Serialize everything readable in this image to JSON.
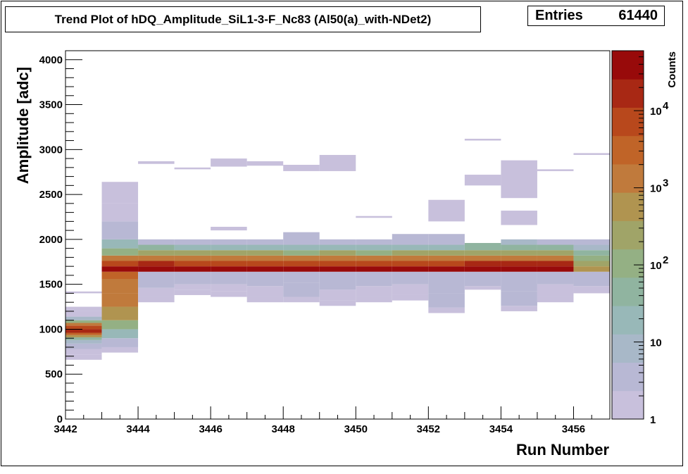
{
  "title": "Trend Plot of hDQ_Amplitude_SiL1-3-F_Nc83 (Al50(a)_with-NDet2)",
  "stats": {
    "label": "Entries",
    "value": "61440"
  },
  "chart_data": {
    "type": "heatmap",
    "xlabel": "Run Number",
    "ylabel": "Amplitude [adc]",
    "zlabel": "Counts",
    "xlim": [
      3442,
      3457
    ],
    "ylim": [
      0,
      4100
    ],
    "zlim": [
      1,
      60000
    ],
    "zscale": "log",
    "x_ticks": [
      3442,
      3444,
      3446,
      3448,
      3450,
      3452,
      3454,
      3456
    ],
    "y_ticks": [
      0,
      500,
      1000,
      1500,
      2000,
      2500,
      3000,
      3500,
      4000
    ],
    "z_ticks": [
      {
        "value": 1,
        "label": "1"
      },
      {
        "value": 10,
        "label": "10"
      },
      {
        "value": 100,
        "label": "10",
        "exp": "2"
      },
      {
        "value": 1000,
        "label": "10",
        "exp": "3"
      },
      {
        "value": 10000,
        "label": "10",
        "exp": "4"
      }
    ],
    "palette": [
      "#c8c0dc",
      "#b8b8d4",
      "#a8b8c8",
      "#98b8b8",
      "#90b4a0",
      "#94b084",
      "#a0a468",
      "#b09450",
      "#c07a3c",
      "#c06428",
      "#b8481c",
      "#a82814",
      "#980a0a"
    ],
    "bins": [
      {
        "run": 3442,
        "bands": [
          [
            660,
            720,
            1
          ],
          [
            720,
            780,
            2
          ],
          [
            780,
            840,
            3
          ],
          [
            840,
            880,
            12
          ],
          [
            880,
            910,
            60
          ],
          [
            910,
            935,
            400
          ],
          [
            935,
            960,
            3000
          ],
          [
            960,
            1000,
            12000
          ],
          [
            1000,
            1040,
            8000
          ],
          [
            1040,
            1070,
            900
          ],
          [
            1070,
            1100,
            80
          ],
          [
            1100,
            1140,
            8
          ],
          [
            1140,
            1200,
            2
          ],
          [
            1200,
            1250,
            1
          ],
          [
            1400,
            1420,
            1
          ]
        ]
      },
      {
        "run": 3443,
        "bands": [
          [
            740,
            800,
            1
          ],
          [
            800,
            900,
            3
          ],
          [
            900,
            1000,
            20
          ],
          [
            1000,
            1100,
            120
          ],
          [
            1100,
            1250,
            400
          ],
          [
            1250,
            1400,
            900
          ],
          [
            1400,
            1560,
            1500
          ],
          [
            1560,
            1640,
            2500
          ],
          [
            1640,
            1700,
            40000
          ],
          [
            1700,
            1760,
            10000
          ],
          [
            1760,
            1820,
            1200
          ],
          [
            1820,
            1900,
            150
          ],
          [
            1900,
            2000,
            20
          ],
          [
            2000,
            2200,
            5
          ],
          [
            2200,
            2400,
            2
          ],
          [
            2400,
            2640,
            1
          ]
        ]
      },
      {
        "run": 3444,
        "bands": [
          [
            1300,
            1360,
            1
          ],
          [
            1360,
            1460,
            2
          ],
          [
            1460,
            1640,
            3
          ],
          [
            1640,
            1700,
            40000
          ],
          [
            1700,
            1760,
            12000
          ],
          [
            1760,
            1820,
            1500
          ],
          [
            1820,
            1880,
            200
          ],
          [
            1880,
            1940,
            30
          ],
          [
            1940,
            2000,
            5
          ],
          [
            2840,
            2870,
            1
          ]
        ]
      },
      {
        "run": 3445,
        "bands": [
          [
            1380,
            1440,
            1
          ],
          [
            1440,
            1500,
            2
          ],
          [
            1500,
            1640,
            3
          ],
          [
            1640,
            1700,
            38000
          ],
          [
            1700,
            1760,
            10000
          ],
          [
            1760,
            1820,
            1200
          ],
          [
            1820,
            1880,
            180
          ],
          [
            1880,
            1940,
            25
          ],
          [
            1940,
            2000,
            4
          ],
          [
            2780,
            2800,
            1
          ]
        ]
      },
      {
        "run": 3446,
        "bands": [
          [
            1360,
            1420,
            1
          ],
          [
            1420,
            1500,
            2
          ],
          [
            1500,
            1640,
            3
          ],
          [
            1640,
            1700,
            40000
          ],
          [
            1700,
            1760,
            11000
          ],
          [
            1760,
            1820,
            1300
          ],
          [
            1820,
            1880,
            190
          ],
          [
            1880,
            1940,
            25
          ],
          [
            1940,
            2000,
            4
          ],
          [
            2100,
            2140,
            1
          ],
          [
            2810,
            2900,
            1
          ]
        ]
      },
      {
        "run": 3447,
        "bands": [
          [
            1300,
            1360,
            1
          ],
          [
            1360,
            1480,
            2
          ],
          [
            1480,
            1640,
            4
          ],
          [
            1640,
            1700,
            39000
          ],
          [
            1700,
            1760,
            10000
          ],
          [
            1760,
            1820,
            1200
          ],
          [
            1820,
            1880,
            170
          ],
          [
            1880,
            1940,
            25
          ],
          [
            1940,
            2000,
            4
          ],
          [
            2820,
            2870,
            1
          ]
        ]
      },
      {
        "run": 3448,
        "bands": [
          [
            1300,
            1360,
            1
          ],
          [
            1360,
            1520,
            3
          ],
          [
            1520,
            1640,
            5
          ],
          [
            1640,
            1700,
            38000
          ],
          [
            1700,
            1760,
            9000
          ],
          [
            1760,
            1820,
            1100
          ],
          [
            1820,
            1880,
            160
          ],
          [
            1880,
            1940,
            25
          ],
          [
            1940,
            2080,
            4
          ],
          [
            2760,
            2830,
            1
          ]
        ]
      },
      {
        "run": 3449,
        "bands": [
          [
            1260,
            1320,
            1
          ],
          [
            1320,
            1440,
            2
          ],
          [
            1440,
            1640,
            3
          ],
          [
            1640,
            1700,
            39000
          ],
          [
            1700,
            1760,
            10000
          ],
          [
            1760,
            1820,
            1200
          ],
          [
            1820,
            1880,
            170
          ],
          [
            1880,
            1940,
            25
          ],
          [
            1940,
            2000,
            4
          ],
          [
            2760,
            2940,
            1
          ]
        ]
      },
      {
        "run": 3450,
        "bands": [
          [
            1300,
            1360,
            1
          ],
          [
            1360,
            1480,
            2
          ],
          [
            1480,
            1640,
            3
          ],
          [
            1640,
            1700,
            38000
          ],
          [
            1700,
            1760,
            10000
          ],
          [
            1760,
            1820,
            1100
          ],
          [
            1820,
            1880,
            160
          ],
          [
            1880,
            1940,
            25
          ],
          [
            1940,
            2000,
            4
          ],
          [
            2240,
            2260,
            1
          ]
        ]
      },
      {
        "run": 3451,
        "bands": [
          [
            1320,
            1380,
            1
          ],
          [
            1380,
            1500,
            2
          ],
          [
            1500,
            1640,
            4
          ],
          [
            1640,
            1700,
            40000
          ],
          [
            1700,
            1760,
            11000
          ],
          [
            1760,
            1820,
            1300
          ],
          [
            1820,
            1880,
            180
          ],
          [
            1880,
            1940,
            25
          ],
          [
            1940,
            2060,
            4
          ]
        ]
      },
      {
        "run": 3452,
        "bands": [
          [
            1180,
            1240,
            1
          ],
          [
            1240,
            1400,
            3
          ],
          [
            1400,
            1640,
            5
          ],
          [
            1640,
            1700,
            38000
          ],
          [
            1700,
            1760,
            10000
          ],
          [
            1760,
            1820,
            1200
          ],
          [
            1820,
            1880,
            170
          ],
          [
            1880,
            1940,
            25
          ],
          [
            1940,
            2060,
            4
          ],
          [
            2200,
            2440,
            1
          ]
        ]
      },
      {
        "run": 3453,
        "bands": [
          [
            1440,
            1480,
            1
          ],
          [
            1480,
            1560,
            3
          ],
          [
            1560,
            1640,
            3
          ],
          [
            1640,
            1700,
            41000
          ],
          [
            1700,
            1760,
            12000
          ],
          [
            1760,
            1820,
            1400
          ],
          [
            1820,
            1880,
            200
          ],
          [
            1880,
            1960,
            30
          ],
          [
            2600,
            2720,
            1
          ],
          [
            3100,
            3120,
            1
          ]
        ]
      },
      {
        "run": 3454,
        "bands": [
          [
            1200,
            1260,
            1
          ],
          [
            1260,
            1420,
            3
          ],
          [
            1420,
            1640,
            4
          ],
          [
            1640,
            1700,
            55000
          ],
          [
            1700,
            1760,
            14000
          ],
          [
            1760,
            1820,
            1800
          ],
          [
            1820,
            1880,
            250
          ],
          [
            1880,
            1940,
            40
          ],
          [
            1940,
            2000,
            6
          ],
          [
            2160,
            2320,
            1
          ],
          [
            2460,
            2880,
            1
          ]
        ]
      },
      {
        "run": 3455,
        "bands": [
          [
            1300,
            1360,
            1
          ],
          [
            1360,
            1500,
            2
          ],
          [
            1500,
            1640,
            4
          ],
          [
            1640,
            1700,
            42000
          ],
          [
            1700,
            1760,
            12000
          ],
          [
            1760,
            1820,
            1400
          ],
          [
            1820,
            1880,
            200
          ],
          [
            1880,
            1940,
            30
          ],
          [
            1940,
            2000,
            5
          ],
          [
            2760,
            2780,
            1
          ]
        ]
      },
      {
        "run": 3456,
        "bands": [
          [
            1400,
            1480,
            2
          ],
          [
            1480,
            1640,
            3
          ],
          [
            1640,
            1700,
            500
          ],
          [
            1700,
            1760,
            200
          ],
          [
            1760,
            1820,
            80
          ],
          [
            1820,
            1880,
            30
          ],
          [
            1880,
            1940,
            10
          ],
          [
            1940,
            2000,
            3
          ],
          [
            2940,
            2960,
            1
          ]
        ]
      }
    ]
  }
}
